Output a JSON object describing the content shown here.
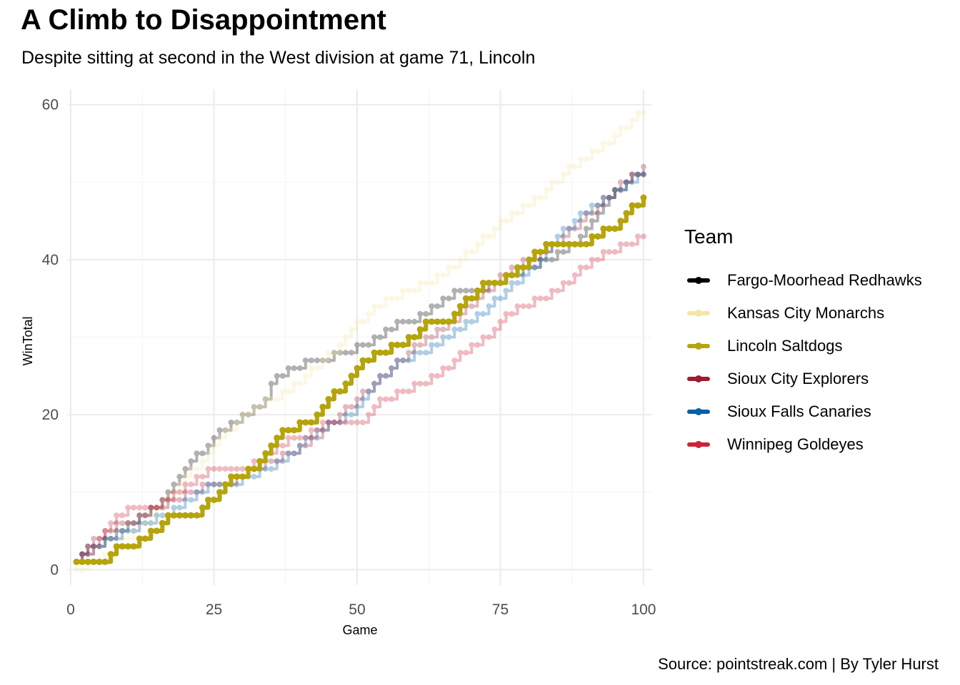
{
  "title": "A Climb to Disappointment",
  "subtitle": "Despite sitting at second in the West division at game 71, Lincoln",
  "caption": "Source: pointstreak.com | By Tyler Hurst",
  "chart_data": {
    "type": "line",
    "xlabel": "Game",
    "ylabel": "WinTotal",
    "xlim": [
      -0.5,
      101.5
    ],
    "ylim": [
      -2,
      62
    ],
    "xticks": [
      0,
      25,
      50,
      75,
      100
    ],
    "yticks": [
      0,
      20,
      40,
      60
    ],
    "grid": true,
    "legend_title": "Team",
    "legend_position": "right",
    "highlight": "Lincoln Saltdogs",
    "series": [
      {
        "name": "Fargo-Moorhead Redhawks",
        "color": "#000000",
        "x": [
          2,
          4,
          7,
          9,
          11,
          13,
          16,
          19,
          21,
          23,
          25,
          28,
          31,
          33,
          36,
          39,
          42,
          44,
          48,
          52,
          55,
          59,
          62,
          65,
          68,
          71,
          74,
          77,
          80,
          83,
          86,
          88,
          90,
          92,
          94,
          96,
          98,
          100
        ],
        "y": [
          2,
          3,
          4,
          5,
          6,
          7,
          9,
          12,
          14,
          15,
          17,
          19,
          20,
          21,
          25,
          26,
          27,
          27,
          28,
          29,
          31,
          32,
          33,
          35,
          36,
          36,
          37,
          38,
          39,
          40,
          41,
          42,
          44,
          46,
          48,
          49,
          51,
          51
        ]
      },
      {
        "name": "Kansas City Monarchs",
        "color": "#f5e6a6",
        "x": [
          1,
          5,
          8,
          11,
          14,
          17,
          20,
          23,
          26,
          29,
          32,
          35,
          38,
          41,
          44,
          47,
          49,
          51,
          53,
          56,
          59,
          62,
          65,
          68,
          71,
          74,
          77,
          80,
          83,
          86,
          89,
          92,
          95,
          98,
          100
        ],
        "y": [
          0,
          1,
          3,
          5,
          7,
          9,
          12,
          14,
          17,
          19,
          21,
          22,
          23,
          25,
          27,
          29,
          31,
          32,
          34,
          35,
          36,
          37,
          38,
          40,
          42,
          44,
          46,
          47,
          49,
          51,
          53,
          54,
          56,
          58,
          59
        ]
      },
      {
        "name": "Lincoln Saltdogs",
        "color": "#b5a40c",
        "x": [
          1,
          3,
          5,
          6,
          7,
          8,
          10,
          11,
          12,
          13,
          15,
          16,
          17,
          18,
          20,
          22,
          23,
          25,
          26,
          27,
          28,
          30,
          32,
          33,
          34,
          35,
          36,
          38,
          39,
          40,
          42,
          43,
          44,
          45,
          46,
          47,
          48,
          49,
          50,
          51,
          52,
          53,
          55,
          57,
          58,
          60,
          61,
          62,
          63,
          64,
          66,
          67,
          68,
          70,
          71,
          72,
          74,
          75,
          76,
          77,
          78,
          79,
          80,
          81,
          82,
          84,
          86,
          88,
          90,
          91,
          92,
          93,
          94,
          95,
          96,
          97,
          98,
          99,
          100
        ],
        "y": [
          1,
          1,
          1,
          1,
          2,
          3,
          3,
          3,
          4,
          4,
          5,
          6,
          7,
          7,
          7,
          7,
          8,
          9,
          10,
          11,
          12,
          12,
          13,
          14,
          15,
          16,
          17,
          18,
          18,
          19,
          19,
          20,
          21,
          22,
          23,
          23,
          24,
          25,
          26,
          27,
          27,
          28,
          28,
          29,
          29,
          30,
          31,
          32,
          32,
          32,
          32,
          33,
          34,
          35,
          36,
          37,
          37,
          37,
          38,
          38,
          39,
          39,
          40,
          41,
          41,
          42,
          42,
          42,
          42,
          43,
          43,
          44,
          44,
          44,
          45,
          46,
          47,
          47,
          48
        ]
      },
      {
        "name": "Sioux City Explorers",
        "color": "#9e1b32",
        "x": [
          1,
          3,
          5,
          7,
          9,
          11,
          13,
          15,
          18,
          21,
          24,
          27,
          30,
          32,
          35,
          38,
          41,
          44,
          47,
          50,
          53,
          56,
          59,
          62,
          65,
          68,
          71,
          74,
          77,
          80,
          83,
          86,
          89,
          92,
          95,
          97,
          100
        ],
        "y": [
          1,
          3,
          4,
          5,
          6,
          6,
          7,
          8,
          9,
          10,
          11,
          11,
          12,
          13,
          14,
          15,
          16,
          18,
          20,
          22,
          24,
          26,
          28,
          30,
          31,
          33,
          35,
          37,
          39,
          40,
          41,
          43,
          45,
          47,
          49,
          50,
          52
        ]
      },
      {
        "name": "Sioux Falls Canaries",
        "color": "#0061aa",
        "x": [
          1,
          3,
          5,
          7,
          10,
          13,
          16,
          19,
          22,
          25,
          28,
          31,
          34,
          37,
          40,
          43,
          46,
          49,
          51,
          53,
          56,
          58,
          61,
          64,
          67,
          70,
          73,
          76,
          79,
          82,
          85,
          88,
          90,
          92,
          94,
          96,
          98,
          100
        ],
        "y": [
          1,
          2,
          3,
          4,
          5,
          6,
          7,
          8,
          10,
          11,
          11,
          12,
          13,
          14,
          16,
          18,
          19,
          20,
          22,
          24,
          26,
          27,
          28,
          29,
          31,
          32,
          34,
          36,
          38,
          40,
          43,
          45,
          46,
          47,
          48,
          49,
          50,
          51
        ]
      },
      {
        "name": "Winnipeg Goldeyes",
        "color": "#cc2336",
        "x": [
          1,
          3,
          5,
          7,
          9,
          11,
          13,
          15,
          17,
          19,
          21,
          23,
          25,
          27,
          29,
          31,
          33,
          35,
          37,
          39,
          41,
          43,
          45,
          48,
          51,
          53,
          55,
          58,
          61,
          64,
          67,
          70,
          73,
          76,
          79,
          82,
          85,
          88,
          91,
          94,
          97,
          100
        ],
        "y": [
          1,
          2,
          4,
          6,
          7,
          8,
          8,
          8,
          9,
          10,
          11,
          12,
          13,
          13,
          13,
          13,
          14,
          15,
          16,
          17,
          17,
          18,
          19,
          19,
          19,
          21,
          22,
          23,
          24,
          25,
          27,
          29,
          30,
          33,
          34,
          35,
          36,
          38,
          40,
          41,
          42,
          43
        ]
      }
    ]
  }
}
